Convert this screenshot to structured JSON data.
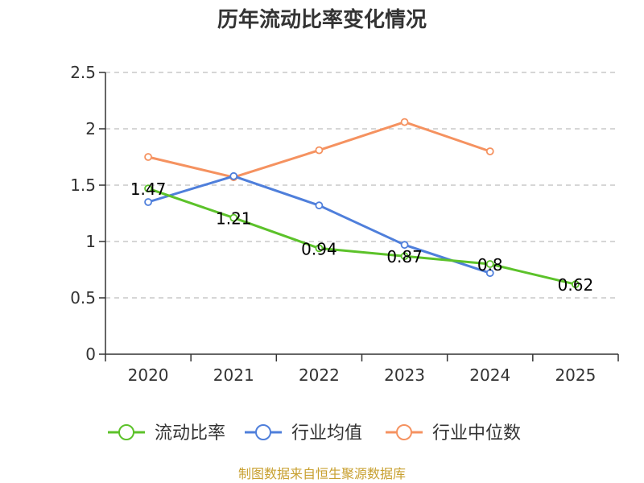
{
  "chart_data": {
    "type": "line",
    "title": "历年流动比率变化情况",
    "categories": [
      "2020",
      "2021",
      "2022",
      "2023",
      "2024",
      "2025"
    ],
    "ylim": [
      0,
      2.5
    ],
    "yticks": [
      "0",
      "0.5",
      "1",
      "1.5",
      "2",
      "2.5"
    ],
    "grid": true,
    "legend_position": "bottom",
    "series": [
      {
        "name": "流动比率",
        "color": "#5cc22a",
        "values": [
          1.47,
          1.21,
          0.94,
          0.87,
          0.8,
          0.62
        ],
        "labels": [
          "1.47",
          "1.21",
          "0.94",
          "0.87",
          "0.8",
          "0.62"
        ]
      },
      {
        "name": "行业均值",
        "color": "#4f7fdb",
        "values": [
          1.35,
          1.58,
          1.32,
          0.97,
          0.72,
          null
        ]
      },
      {
        "name": "行业中位数",
        "color": "#f59260",
        "values": [
          1.75,
          1.57,
          1.81,
          2.06,
          1.8,
          null
        ]
      }
    ],
    "source": "制图数据来自恒生聚源数据库"
  }
}
